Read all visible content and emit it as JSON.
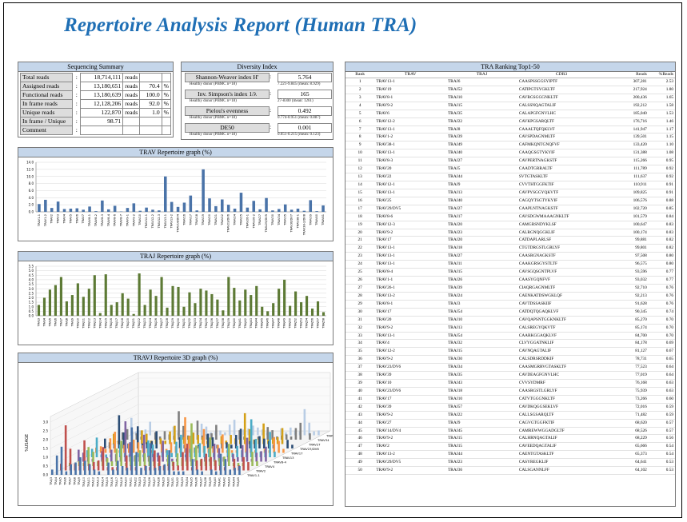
{
  "report_title": "Repertoire Analysis Report (Human TRA)",
  "sequencing_summary": {
    "header": "Sequencing Summary",
    "rows": [
      {
        "label": "Total reads",
        "value": "18,714,111",
        "unit": "reads",
        "pct": "",
        "pct_unit": ""
      },
      {
        "label": "Assigned reads",
        "value": "13,180,651",
        "unit": "reads",
        "pct": "70.4",
        "pct_unit": "%"
      },
      {
        "label": "Functional reads",
        "value": "13,180,639",
        "unit": "reads",
        "pct": "100.0",
        "pct_unit": "%"
      },
      {
        "label": "In frame reads",
        "value": "12,128,206",
        "unit": "reads",
        "pct": "92.0",
        "pct_unit": "%"
      },
      {
        "label": "Unique reads",
        "value": "122,870",
        "unit": "reads",
        "pct": "1.0",
        "pct_unit": "%"
      },
      {
        "label": "In frame / Unique",
        "value": "98.71",
        "unit": "",
        "pct": "",
        "pct_unit": ""
      },
      {
        "label": "Comment",
        "value": "",
        "unit": "",
        "pct": "",
        "pct_unit": ""
      }
    ]
  },
  "diversity_index": {
    "header": "Diversity Index",
    "items": [
      {
        "label": "Shannon-Weaver index H'",
        "value": "5.764",
        "healthy_label": "Healthy donor (PBMC n=18)",
        "healthy_value": "7.221-9.845 (mean: 8.929)"
      },
      {
        "label": "Inv. Simpson's index 1/λ",
        "value": "165",
        "healthy_label": "Healthy donor (PBMC n=18)",
        "healthy_value": "27-8300 (mean: 1261)"
      },
      {
        "label": "Pielou's evenness",
        "value": "0.492",
        "healthy_label": "Healthy donor (PBMC n=18)",
        "healthy_value": "0.774-0.951 (mean: 0.887)"
      },
      {
        "label": "DE50",
        "value": "0.001",
        "healthy_label": "Healthy donor (PBMC n=18)",
        "healthy_value": "0.051-0.215 (mean: 0.123)"
      }
    ]
  },
  "ranking": {
    "header": "TRA Ranking Top1-50",
    "columns": [
      "Rank",
      "TRAV",
      "TRAJ",
      "CDR3",
      "Reads",
      "%Reads"
    ],
    "rows": [
      [
        "1",
        "TRAV13-1",
        "TRAJ6",
        "CAASPSSGGSYIPTF",
        "307,281",
        "2.53"
      ],
      [
        "2",
        "TRAV19",
        "TRAJ52",
        "CATIPGTSYGKLTF",
        "217,924",
        "1.80"
      ],
      [
        "3",
        "TRAV8-1",
        "TRAJ10",
        "CAVRGSGGGNKLTF",
        "200,436",
        "1.65"
      ],
      [
        "4",
        "TRAV9-2",
        "TRAJ15",
        "CALSSNQAGTALIF",
        "192,212",
        "1.58"
      ],
      [
        "5",
        "TRAV6",
        "TRAJ35",
        "CALAPGFGNVLHC",
        "185,040",
        "1.53"
      ],
      [
        "6",
        "TRAV12-2",
        "TRAJ22",
        "CAVKPGSARQLTF",
        "176,716",
        "1.46"
      ],
      [
        "7",
        "TRAV13-1",
        "TRAJ8",
        "CAAALTQFQKLVF",
        "141,947",
        "1.17"
      ],
      [
        "8",
        "TRAV1-2",
        "TRAJ39",
        "CAVSPDAGNMLTF",
        "139,501",
        "1.15"
      ],
      [
        "9",
        "TRAV38-1",
        "TRAJ49",
        "CAFMKQNTGNQFVF",
        "133,420",
        "1.10"
      ],
      [
        "10",
        "TRAV13-1",
        "TRAJ40",
        "CAAQGSGTYKYIF",
        "131,388",
        "1.08"
      ],
      [
        "11",
        "TRAV8-3",
        "TRAJ27",
        "CAVPERTNAGKSTF",
        "115,266",
        "0.95"
      ],
      [
        "12",
        "TRAV20",
        "TRAJ5",
        "CAADTGRRALTF",
        "111,789",
        "0.92"
      ],
      [
        "13",
        "TRAV22",
        "TRAJ44",
        "SVTGTASKLTF",
        "111,637",
        "0.92"
      ],
      [
        "14",
        "TRAV12-1",
        "TRAJ9",
        "CVVTHTGGFKTIF",
        "110,911",
        "0.91"
      ],
      [
        "15",
        "TRAV13-1",
        "TRAJ13",
        "CAVPYSGGYQKVTF",
        "109,825",
        "0.91"
      ],
      [
        "16",
        "TRAV25",
        "TRAJ40",
        "CAGQYTSGTYKYIF",
        "106,576",
        "0.88"
      ],
      [
        "17",
        "TRAV29/DV5",
        "TRAJ27",
        "CAAPLNTNAGKSTF",
        "102,720",
        "0.85"
      ],
      [
        "18",
        "TRAV8-6",
        "TRAJ17",
        "CAVSDGWMAAAGNKLTF",
        "101,579",
        "0.84"
      ],
      [
        "19",
        "TRAV12-3",
        "TRAJ20",
        "CAMGRSNDYKLSF",
        "100,647",
        "0.83"
      ],
      [
        "20",
        "TRAV9-2",
        "TRAJ23",
        "CALRGNQGGKLIF",
        "100,174",
        "0.83"
      ],
      [
        "21",
        "TRAV17",
        "TRAJ20",
        "CATDAPLARLSF",
        "99,881",
        "0.82"
      ],
      [
        "22",
        "TRAV13-1",
        "TRAJ18",
        "CTGTDRGSTLGRLYF",
        "99,801",
        "0.82"
      ],
      [
        "23",
        "TRAV13-1",
        "TRAJ27",
        "CAASRGNAGKSTF",
        "97,508",
        "0.80"
      ],
      [
        "24",
        "TRAV13-1",
        "TRAJ11",
        "CAAKGRSGYSTLTF",
        "96,575",
        "0.80"
      ],
      [
        "25",
        "TRAV8-4",
        "TRAJ15",
        "CAVSGQSGNTPLVF",
        "93,596",
        "0.77"
      ],
      [
        "26",
        "TRAV1-1",
        "TRAJ26",
        "CAASYGQNFVF",
        "93,032",
        "0.77"
      ],
      [
        "27",
        "TRAV26-1",
        "TRAJ39",
        "CIAQRGAGNMLTF",
        "92,710",
        "0.76"
      ],
      [
        "28",
        "TRAV13-2",
        "TRAJ24",
        "CAENKATDSWGKLQF",
        "92,213",
        "0.76"
      ],
      [
        "29",
        "TRAV8-1",
        "TRAJ3",
        "CAVTDSSASKIIF",
        "91,628",
        "0.76"
      ],
      [
        "30",
        "TRAV17",
        "TRAJ54",
        "CATDQTQGAQKLVF",
        "90,345",
        "0.74"
      ],
      [
        "31",
        "TRAV20",
        "TRAJ10",
        "CAVQAPSNTGGKNKLTF",
        "85,270",
        "0.70"
      ],
      [
        "32",
        "TRAV9-2",
        "TRAJ13",
        "CALSREGYQKVTF",
        "85,174",
        "0.70"
      ],
      [
        "33",
        "TRAV13-1",
        "TRAJ54",
        "CAARKGGAQKLVF",
        "84,700",
        "0.70"
      ],
      [
        "34",
        "TRAV4",
        "TRAJ32",
        "CLVYGGATNKLIF",
        "84,178",
        "0.69"
      ],
      [
        "35",
        "TRAV12-2",
        "TRAJ15",
        "CAVNQAGTALIF",
        "81,127",
        "0.67"
      ],
      [
        "36",
        "TRAV9-2",
        "TRAJ30",
        "CALSDRSRDDKIF",
        "78,731",
        "0.65"
      ],
      [
        "37",
        "TRAV23/DV6",
        "TRAJ34",
        "CAASMGRRVGTASKLTF",
        "77,523",
        "0.64"
      ],
      [
        "38",
        "TRAV39",
        "TRAJ35",
        "CAVDEAGFGNVLHC",
        "77,019",
        "0.64"
      ],
      [
        "39",
        "TRAV10",
        "TRAJ43",
        "CVVSYDMRF",
        "76,168",
        "0.63"
      ],
      [
        "40",
        "TRAV23/DV6",
        "TRAJ18",
        "CAASRGSTLGRLYF",
        "75,939",
        "0.63"
      ],
      [
        "41",
        "TRAV17",
        "TRAJ10",
        "CATVTGGGNKLTF",
        "73,266",
        "0.60"
      ],
      [
        "42",
        "TRAV39",
        "TRAJ57",
        "CAVDKQGGSEKLVF",
        "72,016",
        "0.59"
      ],
      [
        "43",
        "TRAV9-2",
        "TRAJ22",
        "CALLSGSARQLTF",
        "71,482",
        "0.59"
      ],
      [
        "44",
        "TRAV27",
        "TRAJ9",
        "CAGVGTGGFKTIF",
        "68,620",
        "0.57"
      ],
      [
        "45",
        "TRAV14/DV4",
        "TRAJ45",
        "CAMREWWGGADGLTF",
        "68,526",
        "0.57"
      ],
      [
        "46",
        "TRAV9-2",
        "TRAJ15",
        "CALHRNQAGTALIF",
        "68,229",
        "0.56"
      ],
      [
        "47",
        "TRAV2",
        "TRAJ15",
        "CAVEEDQAGTALIF",
        "65,666",
        "0.54"
      ],
      [
        "48",
        "TRAV13-2",
        "TRAJ44",
        "CAENTGTASKLTF",
        "65,373",
        "0.54"
      ],
      [
        "49",
        "TRAV29/DV5",
        "TRAJ23",
        "CASYREGKLIF",
        "64,641",
        "0.53"
      ],
      [
        "50",
        "TRAV9-2",
        "TRAJ36",
        "CALSGANNLFF",
        "64,102",
        "0.53"
      ]
    ]
  },
  "trav_graph": {
    "header": "TRAV Repertoire graph (%)",
    "bar_color": "#4a73a8",
    "chart_data": {
      "type": "bar",
      "yticks": [
        "0.0",
        "2.0",
        "4.0",
        "6.0",
        "8.0",
        "10.0",
        "12.0",
        "14.0"
      ],
      "ylim": [
        0,
        14
      ],
      "categories": [
        "TRAV1-1",
        "TRAV1-2",
        "TRAV2",
        "TRAV3",
        "TRAV4",
        "TRAV5",
        "TRAV6",
        "TRAV7",
        "TRAV8-1",
        "TRAV8-2",
        "TRAV8-3",
        "TRAV8-4",
        "TRAV8-6",
        "TRAV8-7",
        "TRAV9-1",
        "TRAV9-2",
        "TRAV10",
        "TRAV12-1",
        "TRAV12-2",
        "TRAV12-3",
        "TRAV13-1",
        "TRAV13-2",
        "TRAV14/DV4",
        "TRAV16",
        "TRAV17",
        "TRAV18",
        "TRAV19",
        "TRAV20",
        "TRAV21",
        "TRAV22",
        "TRAV23/DV6",
        "TRAV24",
        "TRAV25",
        "TRAV26-1",
        "TRAV26-2",
        "TRAV27",
        "TRAV29/DV5",
        "TRAV30",
        "TRAV34",
        "TRAV35",
        "TRAV36/DV7",
        "TRAV38-1",
        "TRAV38-2/DV8",
        "TRAV39",
        "TRAV40",
        "TRAV41"
      ],
      "values": [
        2.2,
        3.4,
        1.1,
        2.9,
        0.8,
        0.9,
        1.0,
        0.6,
        1.5,
        0.2,
        3.2,
        0.7,
        1.7,
        0.1,
        1.1,
        2.4,
        0.3,
        1.2,
        0.6,
        0.4,
        10.0,
        2.8,
        1.4,
        2.6,
        4.6,
        0.4,
        12.0,
        3.8,
        1.6,
        3.5,
        2.0,
        0.9,
        5.4,
        1.2,
        3.1,
        0.7,
        3.9,
        0.4,
        0.8,
        2.1,
        0.6,
        0.9,
        0.3,
        3.3,
        0.2,
        1.8
      ]
    }
  },
  "traj_graph": {
    "header": "TRAJ Repertoire graph (%)",
    "bar_color": "#5d7a35",
    "chart_data": {
      "type": "bar",
      "yticks": [
        "0.0",
        "0.5",
        "1.0",
        "1.5",
        "2.0",
        "2.5",
        "3.0",
        "3.5",
        "4.0",
        "4.5",
        "5.0",
        "5.5"
      ],
      "ylim": [
        0,
        5.5
      ],
      "categories": [
        "TRAJ3",
        "TRAJ4",
        "TRAJ5",
        "TRAJ6",
        "TRAJ7",
        "TRAJ8",
        "TRAJ9",
        "TRAJ10",
        "TRAJ11",
        "TRAJ12",
        "TRAJ13",
        "TRAJ14",
        "TRAJ15",
        "TRAJ16",
        "TRAJ17",
        "TRAJ18",
        "TRAJ20",
        "TRAJ21",
        "TRAJ22",
        "TRAJ23",
        "TRAJ24",
        "TRAJ26",
        "TRAJ27",
        "TRAJ28",
        "TRAJ29",
        "TRAJ30",
        "TRAJ31",
        "TRAJ32",
        "TRAJ33",
        "TRAJ34",
        "TRAJ35",
        "TRAJ36",
        "TRAJ37",
        "TRAJ38",
        "TRAJ39",
        "TRAJ40",
        "TRAJ41",
        "TRAJ42",
        "TRAJ43",
        "TRAJ44",
        "TRAJ45",
        "TRAJ46",
        "TRAJ47",
        "TRAJ48",
        "TRAJ49",
        "TRAJ50",
        "TRAJ52",
        "TRAJ53",
        "TRAJ54",
        "TRAJ56",
        "TRAJ57",
        "TRAJ58"
      ],
      "values": [
        1.2,
        2.0,
        2.9,
        3.4,
        4.3,
        1.6,
        2.3,
        3.6,
        2.1,
        3.0,
        4.5,
        0.3,
        4.6,
        1.2,
        1.5,
        2.5,
        1.9,
        0.2,
        4.7,
        1.2,
        2.9,
        2.2,
        4.3,
        0.9,
        3.3,
        3.2,
        1.0,
        2.6,
        1.4,
        3.0,
        2.8,
        2.4,
        1.8,
        0.6,
        4.3,
        3.1,
        1.7,
        2.9,
        2.3,
        3.3,
        1.0,
        0.5,
        1.4,
        3.0,
        4.0,
        1.1,
        2.7,
        1.5,
        2.2,
        0.8,
        1.6,
        0.4
      ]
    }
  },
  "travj_graph": {
    "header": "TRAVJ Repertoire 3D graph (%)",
    "ylabel": "%USAGE",
    "yticks": [
      "0.0",
      "0.5",
      "1.0",
      "1.5",
      "2.0",
      "2.5",
      "3.0"
    ],
    "depth_labels": [
      "TRAV1-1",
      "TRAV2",
      "TRAV4",
      "TRAV8-4",
      "TRAV13",
      "TRAV17",
      "TRAV23/DV6",
      "TRAV27",
      "TRAV34",
      "TRAV38..."
    ],
    "x_labels": [
      "TRAJ3",
      "TRAJ4",
      "TRAJ5",
      "TRAJ6",
      "TRAJ7",
      "TRAJ8",
      "TRAJ9",
      "TRAJ10",
      "TRAJ11",
      "TRAJ12",
      "TRAJ13",
      "TRAJ14",
      "TRAJ15",
      "TRAJ16",
      "TRAJ17",
      "TRAJ18",
      "TRAJ20",
      "TRAJ21",
      "TRAJ22",
      "TRAJ23",
      "TRAJ24",
      "TRAJ26",
      "TRAJ27",
      "TRAJ28",
      "TRAJ29",
      "TRAJ30",
      "TRAJ31",
      "TRAJ32",
      "TRAJ33",
      "TRAJ34",
      "TRAJ35",
      "TRAJ36",
      "TRAJ37",
      "TRAJ38",
      "TRAJ39",
      "TRAJ40",
      "TRAJ41",
      "TRAJ42",
      "TRAJ43",
      "TRAJ44",
      "TRAJ45"
    ],
    "colors": [
      "#4a73a8",
      "#c0504d",
      "#9bbb59",
      "#8064a2",
      "#4bacc6",
      "#f79646",
      "#2c4d75",
      "#d4a017",
      "#7f7f7f",
      "#b9cde5"
    ]
  }
}
